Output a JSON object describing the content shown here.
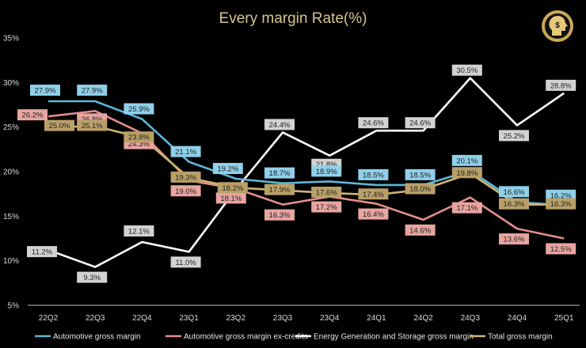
{
  "chart_data": {
    "type": "line",
    "title": "Every margin Rate(%)",
    "categories": [
      "22Q2",
      "22Q3",
      "22Q4",
      "23Q1",
      "23Q2",
      "23Q3",
      "23Q4",
      "24Q1",
      "24Q2",
      "24Q3",
      "24Q4",
      "25Q1"
    ],
    "ylim": [
      5,
      35
    ],
    "yticks": [
      "35%",
      "30%",
      "25%",
      "20%",
      "15%",
      "10%",
      "5%"
    ],
    "ytick_values": [
      35,
      30,
      25,
      20,
      15,
      10,
      5
    ],
    "xlabel": "",
    "ylabel": "",
    "grid": false,
    "legend_position": "bottom",
    "logo_icon": "dollar-head-icon",
    "series": [
      {
        "name": "Automotive gross margin",
        "color": "#5fb6d9",
        "label_bg": "#8fd0ea",
        "values": [
          27.9,
          27.9,
          25.9,
          21.1,
          19.2,
          18.7,
          18.9,
          18.5,
          18.5,
          20.1,
          16.6,
          16.2
        ],
        "labels": [
          "27.9%",
          "27.9%",
          "25.9%",
          "21.1%",
          "19.2%",
          "18.7%",
          "18.9%",
          "18.5%",
          "18.5%",
          "20.1%",
          "16.6%",
          "16.2%"
        ]
      },
      {
        "name": "Automotive gross margin ex-credits",
        "color": "#e48f8a",
        "label_bg": "#e8a5a0",
        "values": [
          26.2,
          26.8,
          24.3,
          19.0,
          18.1,
          16.3,
          17.2,
          16.4,
          14.6,
          17.1,
          13.6,
          12.5
        ],
        "labels": [
          "26.2%",
          "26.8%",
          "24.3%",
          "19.0%",
          "18.1%",
          "16.3%",
          "17.2%",
          "16.4%",
          "14.6%",
          "17.1%",
          "13.6%",
          "12.5%"
        ]
      },
      {
        "name": "Energy Generation and Storage gross margin",
        "color": "#ffffff",
        "label_bg": "#d2d2d2",
        "values": [
          11.2,
          9.3,
          12.1,
          11.0,
          18.0,
          24.4,
          21.8,
          24.6,
          24.6,
          30.5,
          25.2,
          28.8
        ],
        "labels": [
          "11.2%",
          "9.3%",
          "12.1%",
          "11.0%",
          "",
          "24.4%",
          "21.8%",
          "24.6%",
          "24.6%",
          "30.5%",
          "25.2%",
          "28.8%"
        ]
      },
      {
        "name": "Total gross margin",
        "color": "#cdb572",
        "label_bg": "#b9a068",
        "values": [
          25.0,
          25.1,
          23.8,
          19.3,
          18.2,
          17.9,
          17.6,
          17.4,
          18.0,
          19.8,
          16.3,
          16.3
        ],
        "labels": [
          "25.0%",
          "25.1%",
          "23.8%",
          "19.3%",
          "18.2%",
          "17.9%",
          "17.6%",
          "17.4%",
          "18.0%",
          "19.8%",
          "16.3%",
          "16.3%"
        ]
      }
    ]
  }
}
